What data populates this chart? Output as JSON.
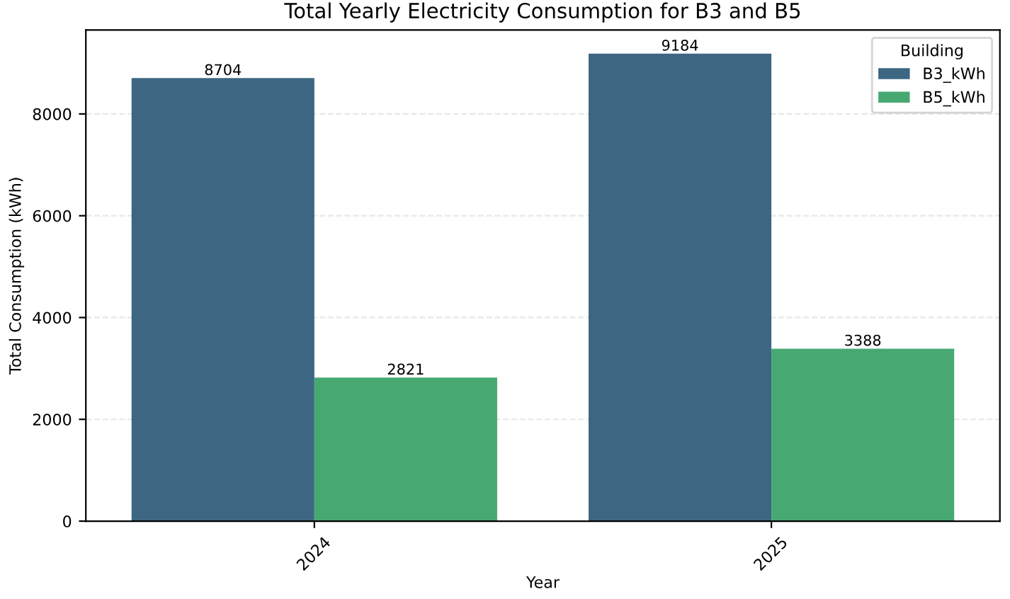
{
  "chart_data": {
    "type": "bar",
    "title": "Total Yearly Electricity Consumption for B3 and B5",
    "xlabel": "Year",
    "ylabel": "Total Consumption (kWh)",
    "legend_title": "Building",
    "categories": [
      "2024",
      "2025"
    ],
    "series": [
      {
        "name": "B3_kWh",
        "color": "#3d6683",
        "values": [
          8704,
          9184
        ]
      },
      {
        "name": "B5_kWh",
        "color": "#47a971",
        "values": [
          2821,
          3388
        ]
      }
    ],
    "ylim": [
      0,
      9650
    ],
    "yticks": [
      0,
      2000,
      4000,
      6000,
      8000
    ],
    "grid": "y",
    "legend": "top right",
    "data_labels": true
  }
}
